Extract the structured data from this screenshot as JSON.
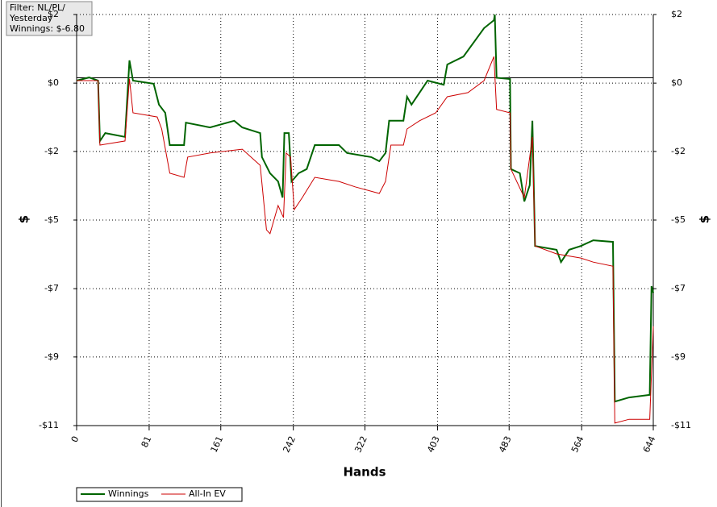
{
  "chart_data": {
    "type": "line",
    "annotation": [
      "Filter: NL/PL/",
      "Yesterday",
      "Winnings: $-6.80"
    ],
    "x_label": "Hands",
    "y_label": "$",
    "y2_label": "$",
    "xlim": [
      0,
      644
    ],
    "xticks": [
      0,
      81,
      161,
      242,
      322,
      403,
      483,
      564,
      644
    ],
    "ylim": [
      -11,
      2
    ],
    "yticks": [
      {
        "value": 2,
        "label": "$2"
      },
      {
        "value": -0.17,
        "label": "$0"
      },
      {
        "value": -2.33,
        "label": "-$2"
      },
      {
        "value": -4.5,
        "label": "-$5"
      },
      {
        "value": -6.67,
        "label": "-$7"
      },
      {
        "value": -8.83,
        "label": "-$9"
      },
      {
        "value": -11,
        "label": "-$11"
      }
    ],
    "grid": true,
    "zero_line": true,
    "series": [
      {
        "name": "Winnings",
        "color": "#006400",
        "x": [
          0,
          14,
          24,
          26,
          32,
          54,
          59,
          63,
          86,
          92,
          99,
          104,
          120,
          122,
          149,
          176,
          185,
          205,
          207,
          216,
          225,
          230,
          232,
          237,
          240,
          248,
          257,
          266,
          293,
          302,
          329,
          338,
          345,
          349,
          365,
          369,
          374,
          383,
          392,
          410,
          414,
          432,
          455,
          466,
          467,
          469,
          484,
          485,
          495,
          500,
          506,
          509,
          512,
          536,
          541,
          550,
          563,
          577,
          599,
          601,
          617,
          640,
          642,
          644
        ],
        "values": [
          -0.09,
          0.01,
          -0.09,
          -2.0,
          -1.75,
          -1.87,
          0.55,
          -0.09,
          -0.19,
          -0.85,
          -1.11,
          -2.13,
          -2.13,
          -1.42,
          -1.57,
          -1.36,
          -1.57,
          -1.75,
          -2.51,
          -3.02,
          -3.28,
          -3.79,
          -1.75,
          -1.75,
          -3.28,
          -3.02,
          -2.89,
          -2.13,
          -2.13,
          -2.38,
          -2.51,
          -2.64,
          -2.38,
          -1.36,
          -1.36,
          -0.6,
          -0.85,
          -0.47,
          -0.09,
          -0.22,
          0.42,
          0.67,
          1.57,
          1.82,
          2.0,
          0.0,
          -0.04,
          -2.89,
          -3.02,
          -3.91,
          -3.4,
          -1.36,
          -5.32,
          -5.44,
          -5.83,
          -5.44,
          -5.32,
          -5.14,
          -5.19,
          -10.24,
          -10.11,
          -10.03,
          -6.59,
          -6.8
        ]
      },
      {
        "name": "All-In EV",
        "color": "#cc0000",
        "x": [
          0,
          24,
          26,
          54,
          59,
          63,
          90,
          95,
          104,
          120,
          124,
          149,
          185,
          205,
          212,
          216,
          225,
          231,
          234,
          239,
          243,
          252,
          266,
          293,
          311,
          338,
          345,
          351,
          365,
          369,
          383,
          401,
          414,
          437,
          455,
          466,
          469,
          484,
          485,
          500,
          509,
          512,
          536,
          563,
          577,
          599,
          601,
          617,
          640,
          644
        ],
        "values": [
          -0.09,
          -0.09,
          -2.13,
          -2.0,
          -0.03,
          -1.11,
          -1.24,
          -1.62,
          -3.02,
          -3.15,
          -2.51,
          -2.38,
          -2.26,
          -2.77,
          -4.81,
          -4.93,
          -4.04,
          -4.42,
          -2.38,
          -2.51,
          -4.17,
          -3.79,
          -3.15,
          -3.28,
          -3.45,
          -3.66,
          -3.28,
          -2.13,
          -2.13,
          -1.62,
          -1.36,
          -1.11,
          -0.6,
          -0.47,
          -0.09,
          0.67,
          -1.0,
          -1.11,
          -2.89,
          -3.79,
          -1.87,
          -5.32,
          -5.57,
          -5.7,
          -5.83,
          -5.96,
          -10.92,
          -10.8,
          -10.8,
          -7.86
        ]
      }
    ]
  }
}
